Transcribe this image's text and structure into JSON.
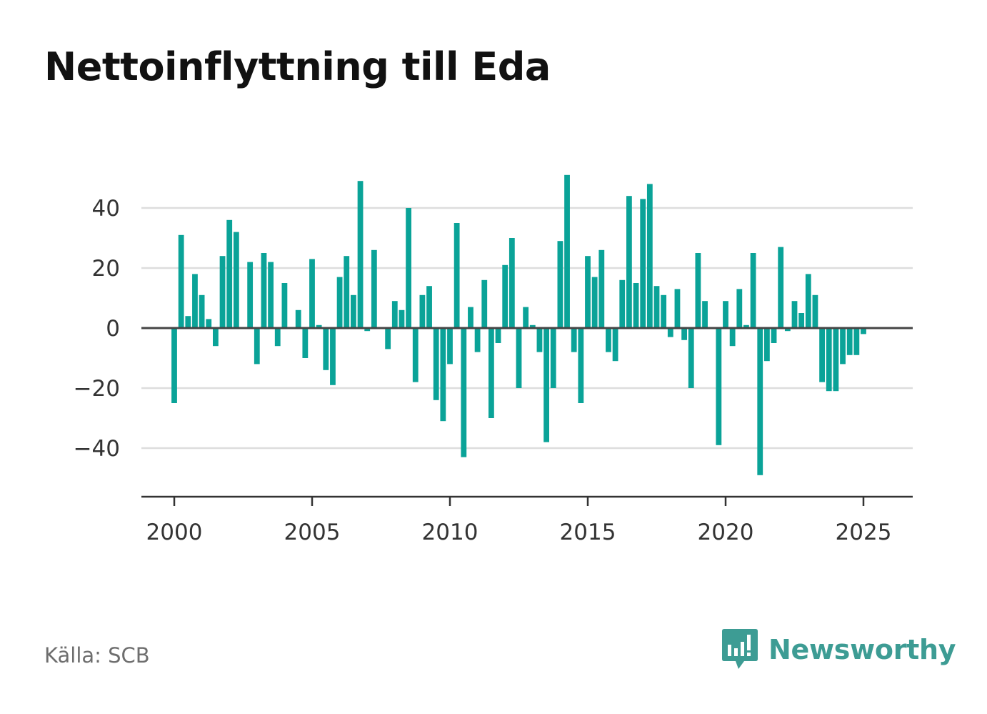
{
  "title": "Nettoinflyttning till Eda",
  "source": "Källa: SCB",
  "logo": {
    "text": "Newsworthy",
    "icon": "newsworthy-chart-bubble-icon",
    "color": "#3d9c94"
  },
  "chart_data": {
    "type": "bar",
    "bar_color": "#0aa398",
    "grid": true,
    "legend": "none",
    "ylim": [
      -56,
      52
    ],
    "xlim": [
      1999.75,
      2026.75
    ],
    "yticks": [
      40,
      20,
      0,
      -20,
      -40
    ],
    "ytick_labels": [
      "40",
      "20",
      "0",
      "−20",
      "−40"
    ],
    "xticks": [
      2000,
      2005,
      2010,
      2015,
      2020,
      2025
    ],
    "xtick_labels": [
      "2000",
      "2005",
      "2010",
      "2015",
      "2020",
      "2025"
    ],
    "x_start": 2000,
    "x_step": 0.25,
    "values": [
      -25,
      31,
      4,
      18,
      11,
      3,
      -6,
      24,
      36,
      32,
      0,
      22,
      -12,
      25,
      22,
      -6,
      15,
      0,
      6,
      -10,
      23,
      1,
      -14,
      -19,
      17,
      24,
      11,
      49,
      -1,
      26,
      0,
      -7,
      9,
      6,
      40,
      -18,
      11,
      14,
      -24,
      -31,
      -12,
      35,
      -43,
      7,
      -8,
      16,
      -30,
      -5,
      21,
      30,
      -20,
      7,
      1,
      -8,
      -38,
      -20,
      29,
      51,
      -8,
      -25,
      24,
      17,
      26,
      -8,
      -11,
      16,
      44,
      15,
      43,
      48,
      14,
      11,
      -3,
      13,
      -4,
      -20,
      25,
      9,
      0,
      -39,
      9,
      -6,
      13,
      1,
      25,
      -49,
      -11,
      -5,
      27,
      -1,
      9,
      5,
      18,
      11,
      -18,
      -21,
      -21,
      -12,
      -9,
      -9,
      -2
    ]
  }
}
